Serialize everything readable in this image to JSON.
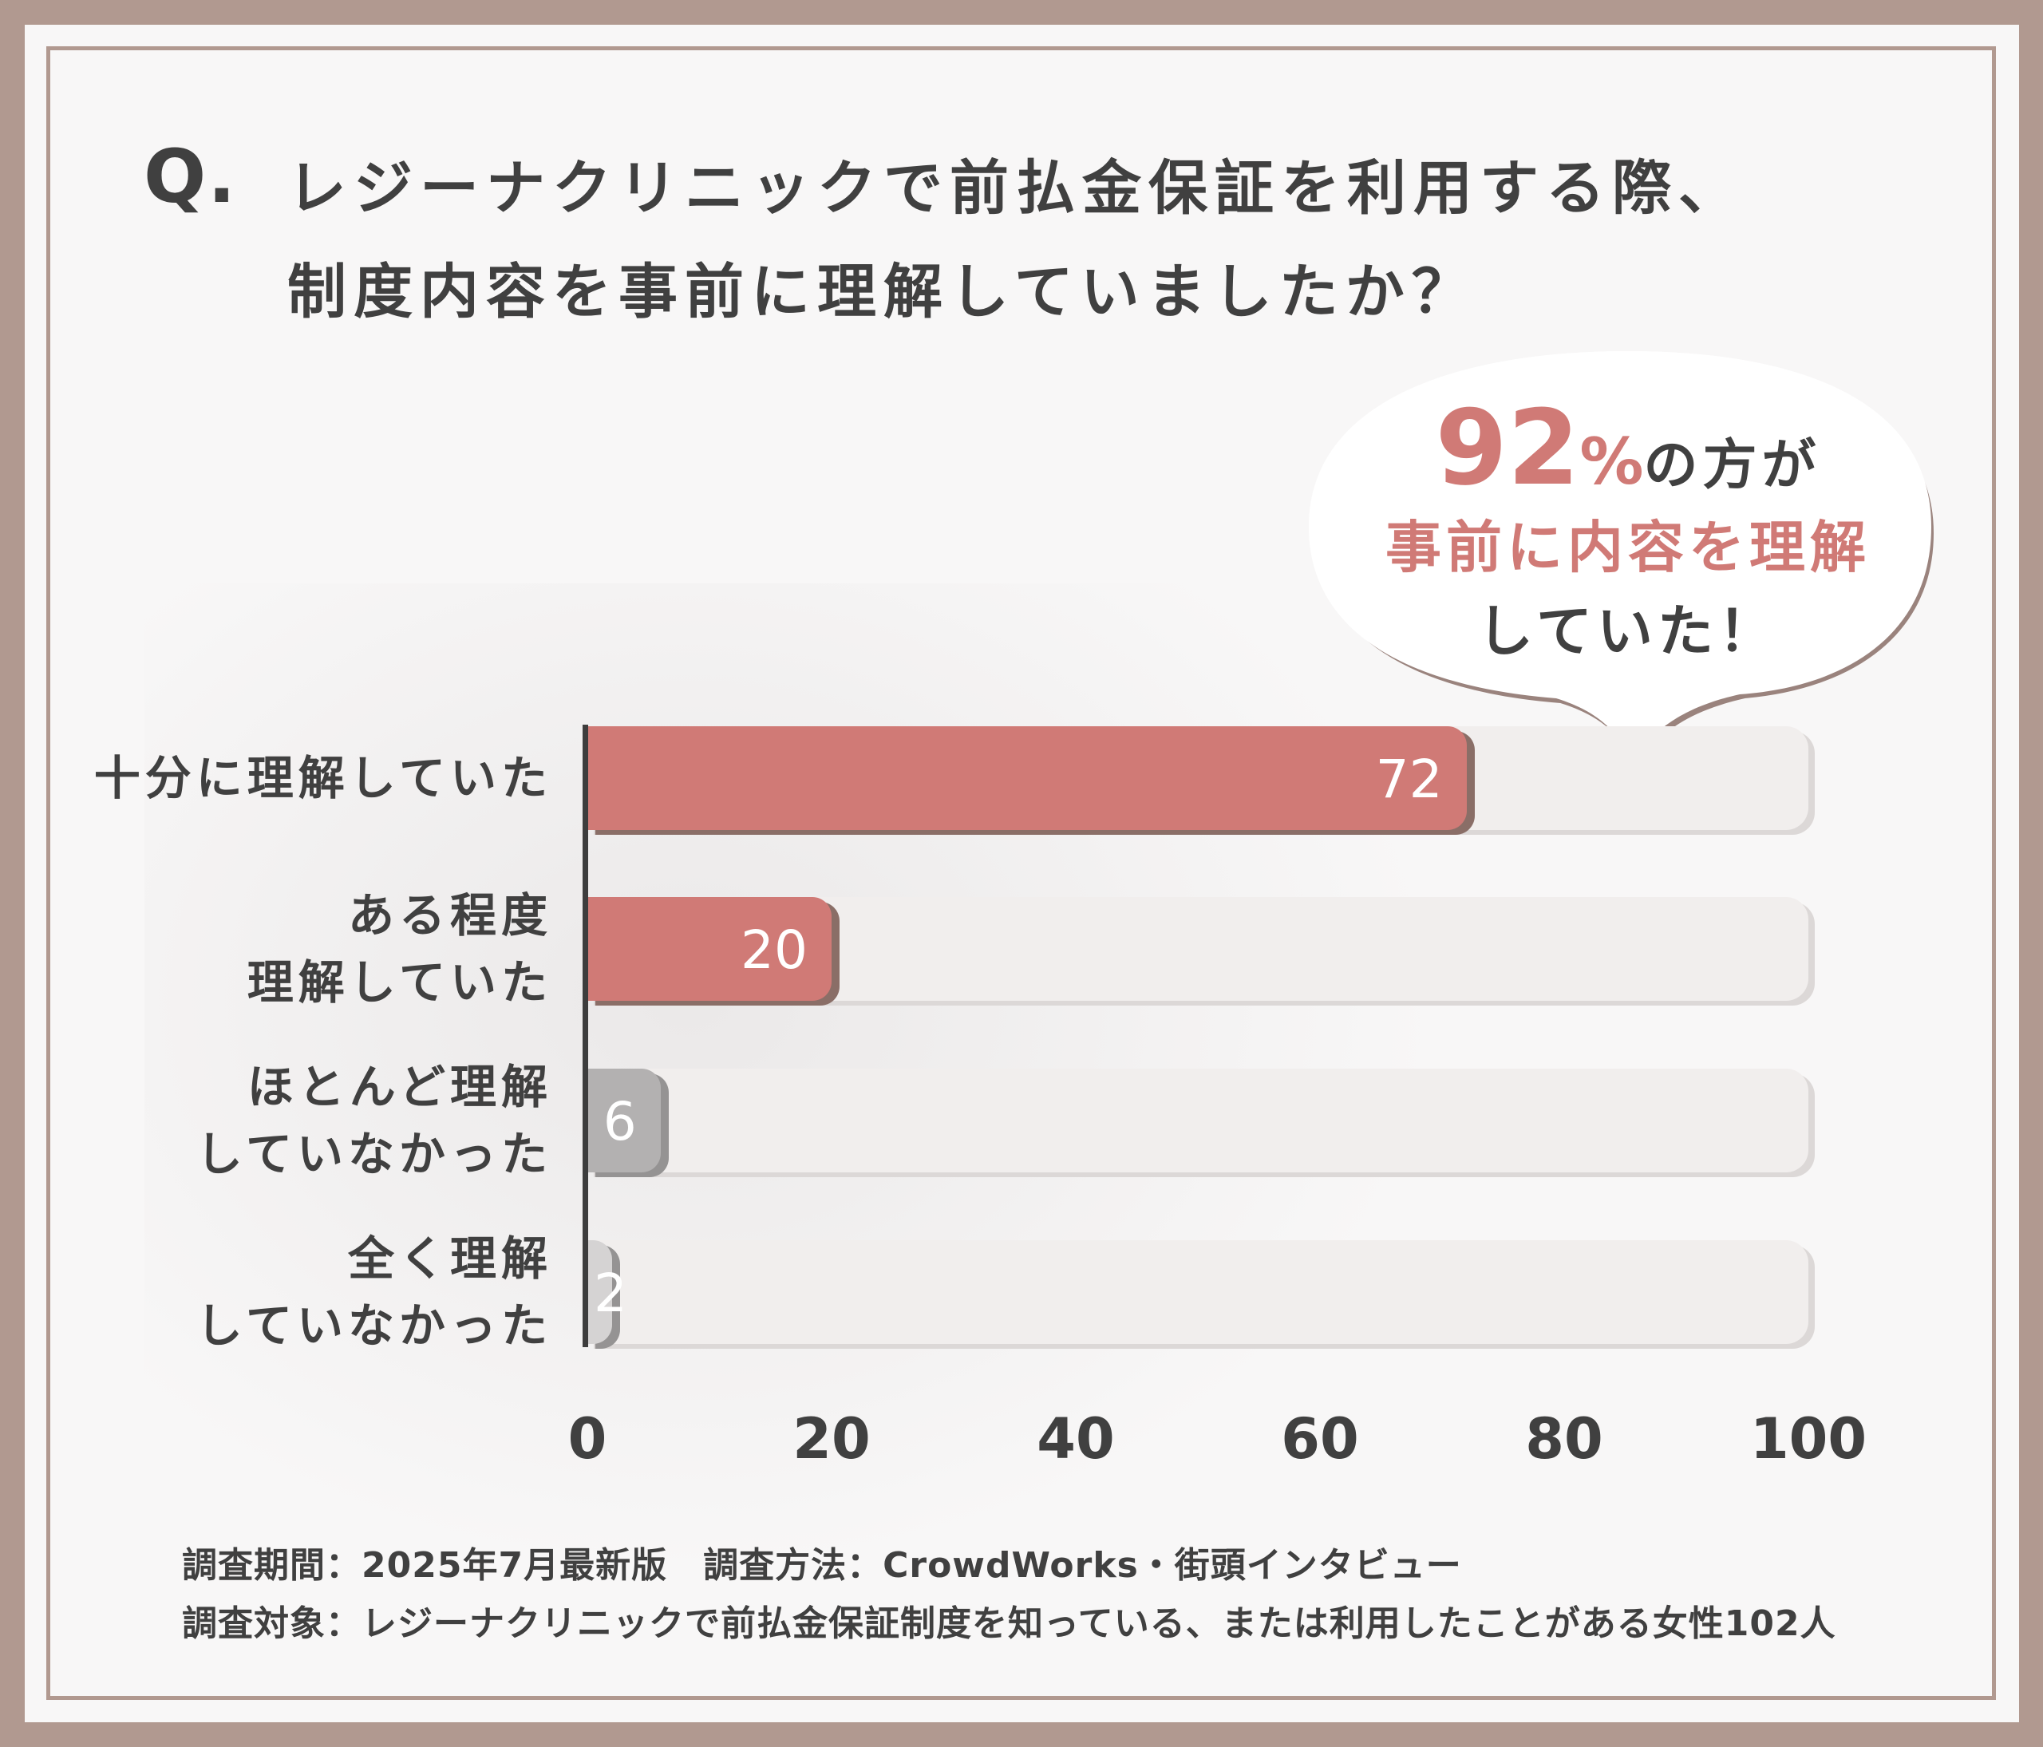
{
  "title": {
    "q": "Q.",
    "line1": "レジーナクリニックで前払金保証を利用する際、",
    "line2": "制度内容を事前に理解していましたか？"
  },
  "callout": {
    "percent": "92",
    "percent_sign": "%",
    "line1_rest": "の方が",
    "line2": "事前に内容を理解",
    "line3": "していた！"
  },
  "chart_data": {
    "type": "bar",
    "orientation": "horizontal",
    "categories": [
      "十分に理解していた",
      "ある程度理解していた",
      "ほとんど理解していなかった",
      "全く理解していなかった"
    ],
    "category_lines": [
      [
        "十分に理解していた"
      ],
      [
        "ある程度",
        "理解していた"
      ],
      [
        "ほとんど理解",
        "していなかった"
      ],
      [
        "全く理解",
        "していなかった"
      ]
    ],
    "values": [
      72,
      20,
      6,
      2
    ],
    "value_labels": [
      "72",
      "20",
      "6",
      "2"
    ],
    "xlim": [
      0,
      100
    ],
    "ticks": [
      "0",
      "20",
      "40",
      "60",
      "80",
      "100"
    ],
    "grid": false,
    "colors": {
      "bar_primary": "#d07a76",
      "bar_primary_shadow": "#8a6e67",
      "bar_secondary": "#b3b1b1",
      "bar_secondary_shadow": "#959393",
      "bar_tertiary": "#d5d3d3",
      "track": "#f1eeed"
    }
  },
  "footnotes": {
    "line1": "調査期間：2025年7月最新版　調査方法：CrowdWorks・街頭インタビュー",
    "line2": "調査対象：レジーナクリニックで前払金保証制度を知っている、または利用したことがある女性102人"
  },
  "colors": {
    "frame": "#b19990",
    "panel": "#f8f7f7",
    "text": "#404040",
    "accent": "#d07a76"
  }
}
